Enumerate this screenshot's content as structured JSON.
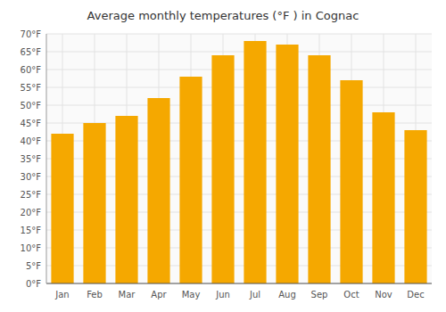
{
  "chart_data": {
    "type": "bar",
    "title": "Average monthly temperatures (°F ) in Cognac",
    "categories": [
      "Jan",
      "Feb",
      "Mar",
      "Apr",
      "May",
      "Jun",
      "Jul",
      "Aug",
      "Sep",
      "Oct",
      "Nov",
      "Dec"
    ],
    "values": [
      42,
      45,
      47,
      52,
      58,
      64,
      68,
      67,
      64,
      57,
      48,
      43
    ],
    "color": "#F5A800",
    "ylim": [
      0,
      70
    ],
    "yticks": [
      {
        "value": 0,
        "label": "0°F"
      },
      {
        "value": 5,
        "label": "5°F"
      },
      {
        "value": 10,
        "label": "10°F"
      },
      {
        "value": 15,
        "label": "15°F"
      },
      {
        "value": 20,
        "label": "20°F"
      },
      {
        "value": 25,
        "label": "25°F"
      },
      {
        "value": 30,
        "label": "30°F"
      },
      {
        "value": 35,
        "label": "35°F"
      },
      {
        "value": 40,
        "label": "40°F"
      },
      {
        "value": 45,
        "label": "45°F"
      },
      {
        "value": 50,
        "label": "50°F"
      },
      {
        "value": 55,
        "label": "55°F"
      },
      {
        "value": 60,
        "label": "60°F"
      },
      {
        "value": 65,
        "label": "65°F"
      },
      {
        "value": 70,
        "label": "70°F"
      }
    ],
    "grid": true
  }
}
